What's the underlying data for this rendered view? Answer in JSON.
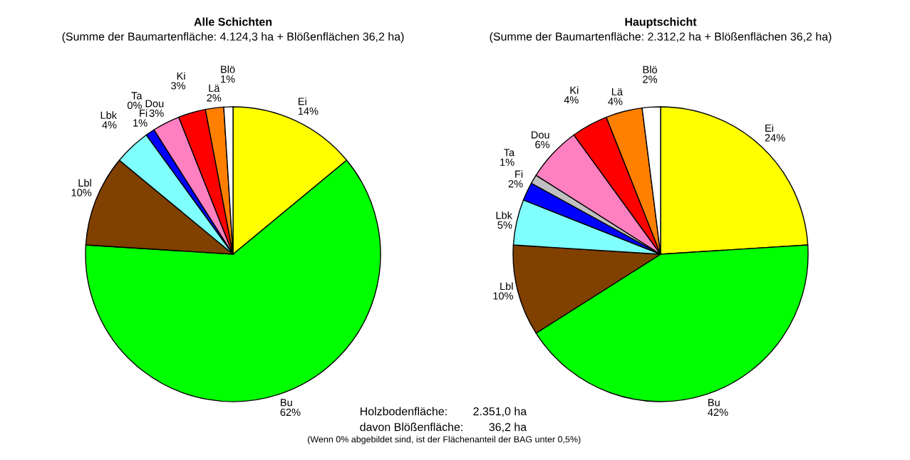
{
  "chart_data": [
    {
      "type": "pie",
      "title": "Alle Schichten",
      "subtitle": "(Summe der Baumartenfläche: 4.124,3 ha + Blößenflächen 36,2 ha)",
      "categories": [
        "Ei",
        "Bu",
        "Lbl",
        "Lbk",
        "Fi",
        "Ta",
        "Dou",
        "Ki",
        "Lä",
        "Blö"
      ],
      "values": [
        14,
        62,
        10,
        4,
        1,
        0,
        3,
        3,
        2,
        1
      ],
      "value_labels": [
        "14%",
        "62%",
        "10%",
        "4%",
        "1%",
        "0%",
        "3%",
        "3%",
        "2%",
        "1%"
      ],
      "colors": [
        "#ffff00",
        "#00ff00",
        "#804000",
        "#80ffff",
        "#0000ff",
        "#c0c0c0",
        "#ff80c0",
        "#ff0000",
        "#ff8000",
        "#ffffff"
      ],
      "annotations": [
        "Holzbodenfläche:        2.351,0 ha",
        "davon Blößenfläche:        36,2 ha",
        "(Wenn 0% abgebildet sind, ist der Flächenanteil der BAG unter 0,5%)"
      ]
    },
    {
      "type": "pie",
      "title": "Hauptschicht",
      "subtitle": "(Summe der Baumartenfläche: 2.312,2 ha + Blößenflächen 36,2 ha)",
      "categories": [
        "Ei",
        "Bu",
        "Lbl",
        "Lbk",
        "Fi",
        "Ta",
        "Dou",
        "Ki",
        "Lä",
        "Blö"
      ],
      "values": [
        24,
        42,
        10,
        5,
        2,
        1,
        6,
        4,
        4,
        2
      ],
      "value_labels": [
        "24%",
        "42%",
        "10%",
        "5%",
        "2%",
        "1%",
        "6%",
        "4%",
        "4%",
        "2%"
      ],
      "colors": [
        "#ffff00",
        "#00ff00",
        "#804000",
        "#80ffff",
        "#0000ff",
        "#c0c0c0",
        "#ff80c0",
        "#ff0000",
        "#ff8000",
        "#ffffff"
      ]
    }
  ]
}
